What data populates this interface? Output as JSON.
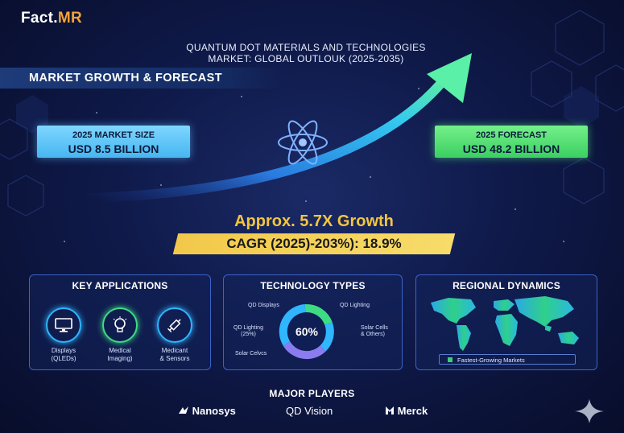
{
  "brand": {
    "name_main": "Fact.",
    "name_accent": "MR"
  },
  "title": {
    "line1": "QUANTUM DOT MATERIALS AND TECHNOLOGIES",
    "line2": "MARKET: GLOBAL OUTLOUK (2025-2035)"
  },
  "section": {
    "heading": "MARKET GROWTH & FORECAST"
  },
  "market_size": {
    "label": "2025 MARKET SIZE",
    "value": "USD 8.5 BILLION"
  },
  "forecast": {
    "label": "2025 FORECAST",
    "value": "USD 48.2 BILLION"
  },
  "growth": {
    "text": "Approx. 5.7X Growth",
    "cagr": "CAGR (2025)-203%): 18.9%"
  },
  "key_applications": {
    "title": "KEY APPLICATIONS",
    "items": [
      {
        "icon": "monitor-icon",
        "line1": "Displays",
        "line2": "(QLEDs)",
        "color": "#2fb6ff"
      },
      {
        "icon": "lightbulb-icon",
        "line1": "Medical",
        "line2": "Imaging)",
        "color": "#3ddc84"
      },
      {
        "icon": "syringe-icon",
        "line1": "Medicant",
        "line2": "& Sensors",
        "color": "#2fb6ff"
      }
    ]
  },
  "technology_types": {
    "title": "TECHNOLOGY TYPES",
    "center_label": "60%",
    "segments": [
      {
        "label": "QD Displays",
        "color": "#3ddc84"
      },
      {
        "label": "QD Lighting",
        "color": "#2fb6ff"
      },
      {
        "label": "Solar Cells",
        "label2": "& Others)",
        "color": "#8a7cf0"
      },
      {
        "label": "QD Lighting",
        "label2": "(25%)",
        "color": "#2fb6ff"
      },
      {
        "label": "Solar Celvcs",
        "color": "#8a7cf0"
      }
    ]
  },
  "regional": {
    "title": "REGIONAL DYNAMICS",
    "legend": "Fastest-Growing Markets",
    "legend_color": "#3ccf7a"
  },
  "players": {
    "title": "MAJOR PLAYERS",
    "items": [
      "Nanosys",
      "QD Vision",
      "Merck"
    ]
  }
}
